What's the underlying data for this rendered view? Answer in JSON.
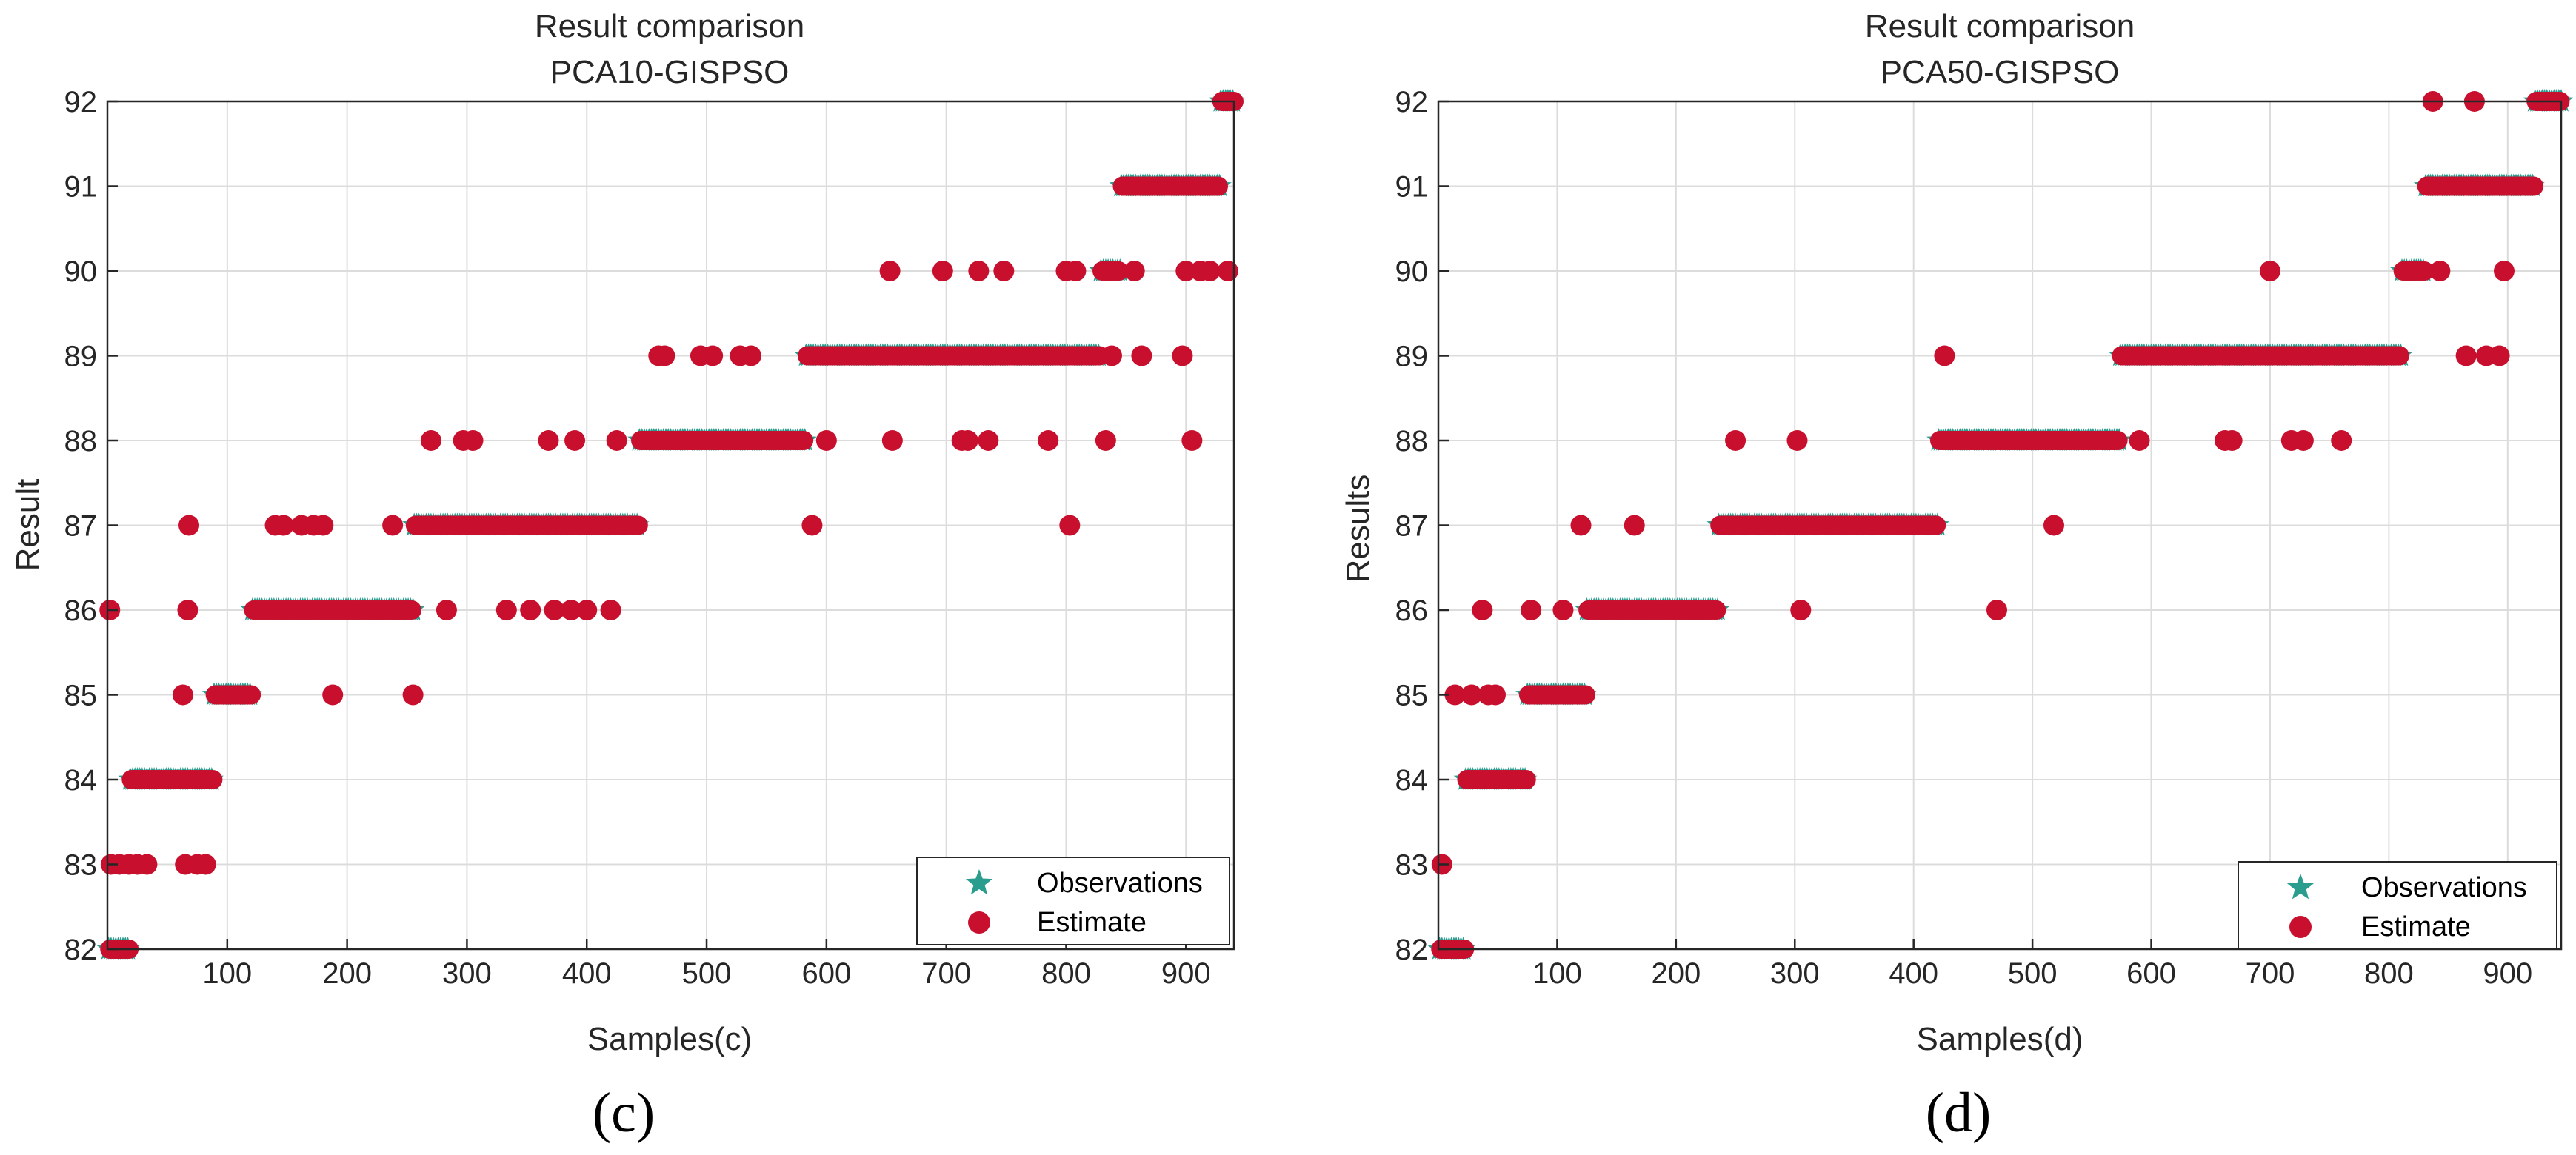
{
  "chart_data": [
    {
      "type": "scatter",
      "title": "Result comparison",
      "subtitle": "PCA10-GISPSO",
      "xlabel": "Samples(c)",
      "ylabel": "Result",
      "panel_label": "(c)",
      "xlim": [
        0,
        940
      ],
      "ylim": [
        82,
        92
      ],
      "xticks": [
        100,
        200,
        300,
        400,
        500,
        600,
        700,
        800,
        900
      ],
      "yticks": [
        82,
        83,
        84,
        85,
        86,
        87,
        88,
        89,
        90,
        91,
        92
      ],
      "legend": {
        "location": "bottom-right",
        "entries": [
          "Observations",
          "Estimate"
        ]
      },
      "colors": {
        "observations": "#2a9d8f",
        "estimate": "#c8102e"
      },
      "observation_segments": [
        {
          "x0": 1,
          "x1": 18,
          "y": 82
        },
        {
          "x0": 19,
          "x1": 88,
          "y": 84
        },
        {
          "x0": 89,
          "x1": 120,
          "y": 85
        },
        {
          "x0": 121,
          "x1": 255,
          "y": 86
        },
        {
          "x0": 256,
          "x1": 443,
          "y": 87
        },
        {
          "x0": 444,
          "x1": 582,
          "y": 88
        },
        {
          "x0": 583,
          "x1": 828,
          "y": 89
        },
        {
          "x0": 829,
          "x1": 845,
          "y": 90
        },
        {
          "x0": 846,
          "x1": 928,
          "y": 91
        },
        {
          "x0": 929,
          "x1": 940,
          "y": 92
        }
      ],
      "estimate_outliers": [
        [
          2,
          86
        ],
        [
          3,
          83
        ],
        [
          10,
          83
        ],
        [
          18,
          83
        ],
        [
          25,
          83
        ],
        [
          33,
          83
        ],
        [
          63,
          85
        ],
        [
          65,
          83
        ],
        [
          67,
          86
        ],
        [
          68,
          87
        ],
        [
          75,
          83
        ],
        [
          82,
          83
        ],
        [
          140,
          87
        ],
        [
          147,
          87
        ],
        [
          162,
          87
        ],
        [
          172,
          87
        ],
        [
          180,
          87
        ],
        [
          188,
          85
        ],
        [
          238,
          87
        ],
        [
          255,
          85
        ],
        [
          270,
          88
        ],
        [
          283,
          86
        ],
        [
          297,
          88
        ],
        [
          305,
          88
        ],
        [
          333,
          86
        ],
        [
          353,
          86
        ],
        [
          368,
          88
        ],
        [
          373,
          86
        ],
        [
          387,
          86
        ],
        [
          390,
          88
        ],
        [
          400,
          86
        ],
        [
          420,
          86
        ],
        [
          425,
          88
        ],
        [
          460,
          89
        ],
        [
          465,
          89
        ],
        [
          495,
          89
        ],
        [
          505,
          89
        ],
        [
          528,
          89
        ],
        [
          537,
          89
        ],
        [
          588,
          87
        ],
        [
          600,
          88
        ],
        [
          653,
          90
        ],
        [
          655,
          88
        ],
        [
          697,
          90
        ],
        [
          713,
          88
        ],
        [
          718,
          88
        ],
        [
          727,
          90
        ],
        [
          735,
          88
        ],
        [
          748,
          90
        ],
        [
          785,
          88
        ],
        [
          800,
          90
        ],
        [
          803,
          87
        ],
        [
          808,
          90
        ],
        [
          833,
          88
        ],
        [
          838,
          89
        ],
        [
          857,
          90
        ],
        [
          863,
          89
        ],
        [
          897,
          89
        ],
        [
          900,
          90
        ],
        [
          905,
          88
        ],
        [
          912,
          90
        ],
        [
          920,
          90
        ],
        [
          935,
          90
        ]
      ]
    },
    {
      "type": "scatter",
      "title": "Result comparison",
      "subtitle": "PCA50-GISPSO",
      "xlabel": "Samples(d)",
      "ylabel": "Results",
      "panel_label": "(d)",
      "xlim": [
        0,
        945
      ],
      "ylim": [
        82,
        92
      ],
      "xticks": [
        100,
        200,
        300,
        400,
        500,
        600,
        700,
        800,
        900
      ],
      "yticks": [
        82,
        83,
        84,
        85,
        86,
        87,
        88,
        89,
        90,
        91,
        92
      ],
      "legend": {
        "location": "bottom-right",
        "entries": [
          "Observations",
          "Estimate"
        ]
      },
      "colors": {
        "observations": "#2a9d8f",
        "estimate": "#c8102e"
      },
      "observation_segments": [
        {
          "x0": 1,
          "x1": 22,
          "y": 82
        },
        {
          "x0": 23,
          "x1": 74,
          "y": 84
        },
        {
          "x0": 75,
          "x1": 124,
          "y": 85
        },
        {
          "x0": 125,
          "x1": 235,
          "y": 86
        },
        {
          "x0": 236,
          "x1": 420,
          "y": 87
        },
        {
          "x0": 421,
          "x1": 573,
          "y": 88
        },
        {
          "x0": 574,
          "x1": 810,
          "y": 89
        },
        {
          "x0": 811,
          "x1": 830,
          "y": 90
        },
        {
          "x0": 831,
          "x1": 922,
          "y": 91
        },
        {
          "x0": 923,
          "x1": 945,
          "y": 92
        }
      ],
      "estimate_outliers": [
        [
          3,
          83
        ],
        [
          14,
          85
        ],
        [
          28,
          85
        ],
        [
          37,
          86
        ],
        [
          42,
          85
        ],
        [
          48,
          85
        ],
        [
          78,
          86
        ],
        [
          105,
          86
        ],
        [
          120,
          87
        ],
        [
          165,
          87
        ],
        [
          250,
          88
        ],
        [
          302,
          88
        ],
        [
          305,
          86
        ],
        [
          426,
          89
        ],
        [
          470,
          86
        ],
        [
          518,
          87
        ],
        [
          590,
          88
        ],
        [
          662,
          88
        ],
        [
          668,
          88
        ],
        [
          700,
          90
        ],
        [
          718,
          88
        ],
        [
          728,
          88
        ],
        [
          760,
          88
        ],
        [
          837,
          92
        ],
        [
          843,
          90
        ],
        [
          865,
          89
        ],
        [
          872,
          92
        ],
        [
          882,
          89
        ],
        [
          893,
          89
        ],
        [
          897,
          90
        ]
      ]
    }
  ]
}
